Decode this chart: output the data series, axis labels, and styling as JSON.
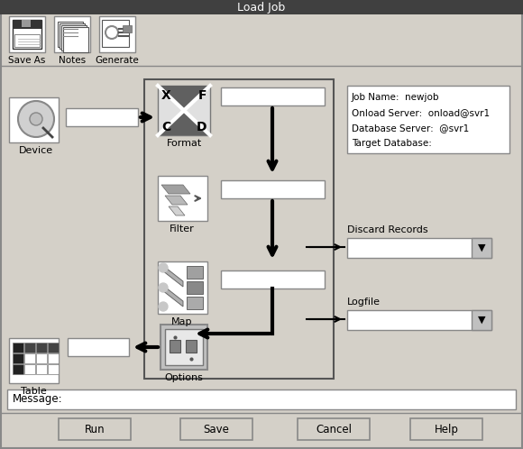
{
  "title": "Load Job",
  "bg_color": "#d4d0c8",
  "white": "#ffffff",
  "black": "#000000",
  "toolbar_labels": [
    "Save As",
    "Notes",
    "Generate"
  ],
  "info_lines": [
    "Job Name:  newjob",
    "Onload Server:  onload@svr1",
    "Database Server:  @svr1",
    "Target Database:"
  ],
  "right_labels": [
    "Discard Records",
    "Logfile"
  ],
  "bottom_label": "Message:",
  "buttons": [
    "Run",
    "Save",
    "Cancel",
    "Help"
  ],
  "figsize": [
    5.8,
    4.98
  ],
  "dpi": 100
}
